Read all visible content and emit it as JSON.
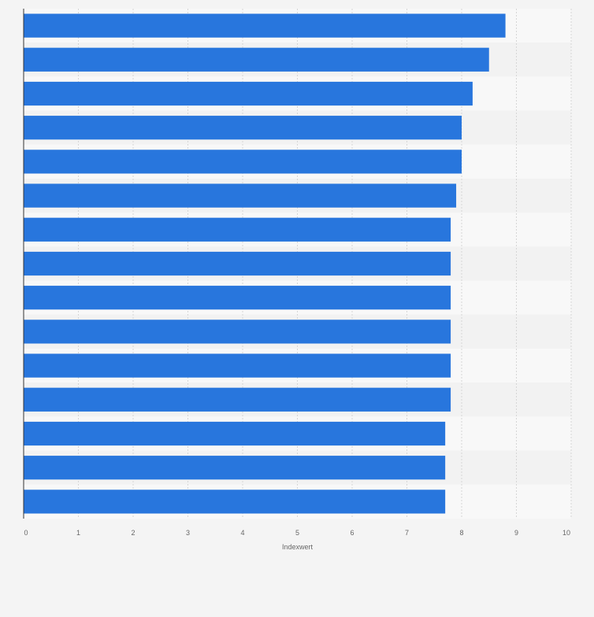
{
  "chart_data": {
    "type": "bar",
    "orientation": "horizontal",
    "xlabel": "Indexwert",
    "xlim": [
      0,
      10
    ],
    "xticks": [
      "0",
      "1",
      "2",
      "3",
      "4",
      "5",
      "6",
      "7",
      "8",
      "9",
      "10"
    ],
    "values": [
      8.8,
      8.5,
      8.2,
      8.0,
      8.0,
      7.9,
      7.8,
      7.8,
      7.8,
      7.8,
      7.8,
      7.8,
      7.7,
      7.7,
      7.7
    ],
    "grid": true,
    "colors": {
      "bar": "#2876dd",
      "background": "#f4f4f4",
      "band_light": "#f8f8f8",
      "band_dark": "#f2f2f2",
      "grid": "#d6d6d6",
      "axis": "#333333",
      "text": "#666666"
    }
  }
}
